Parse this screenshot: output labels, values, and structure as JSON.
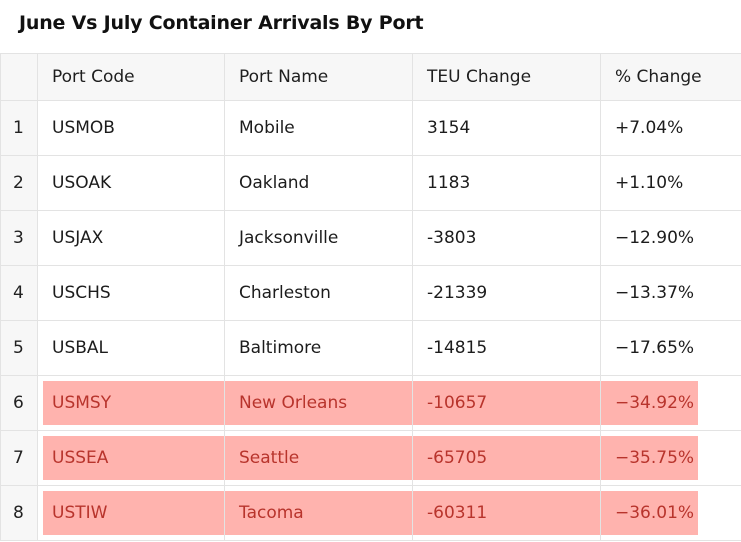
{
  "title": "June Vs July Container Arrivals By Port",
  "table": {
    "headers": {
      "index": "",
      "port_code": "Port Code",
      "port_name": "Port Name",
      "teu_change": "TEU Change",
      "pct_change": "% Change"
    },
    "rows": [
      {
        "index": "1",
        "port_code": "USMOB",
        "port_name": "Mobile",
        "teu_change": "3154",
        "pct_change": "+7.04%",
        "highlighted": false
      },
      {
        "index": "2",
        "port_code": "USOAK",
        "port_name": "Oakland",
        "teu_change": "1183",
        "pct_change": "+1.10%",
        "highlighted": false
      },
      {
        "index": "3",
        "port_code": "USJAX",
        "port_name": "Jacksonville",
        "teu_change": "-3803",
        "pct_change": "−12.90%",
        "highlighted": false
      },
      {
        "index": "4",
        "port_code": "USCHS",
        "port_name": "Charleston",
        "teu_change": "-21339",
        "pct_change": "−13.37%",
        "highlighted": false
      },
      {
        "index": "5",
        "port_code": "USBAL",
        "port_name": "Baltimore",
        "teu_change": "-14815",
        "pct_change": "−17.65%",
        "highlighted": false
      },
      {
        "index": "6",
        "port_code": "USMSY",
        "port_name": "New Orleans",
        "teu_change": "-10657",
        "pct_change": "−34.92%",
        "highlighted": true
      },
      {
        "index": "7",
        "port_code": "USSEA",
        "port_name": "Seattle",
        "teu_change": "-65705",
        "pct_change": "−35.75%",
        "highlighted": true
      },
      {
        "index": "8",
        "port_code": "USTIW",
        "port_name": "Tacoma",
        "teu_change": "-60311",
        "pct_change": "−36.01%",
        "highlighted": true
      }
    ]
  },
  "colors": {
    "highlight_fill": "#ffb3ae",
    "highlight_text": "#b8342c",
    "header_bg": "#f7f7f7",
    "grid_line": "#e3e3e3"
  }
}
